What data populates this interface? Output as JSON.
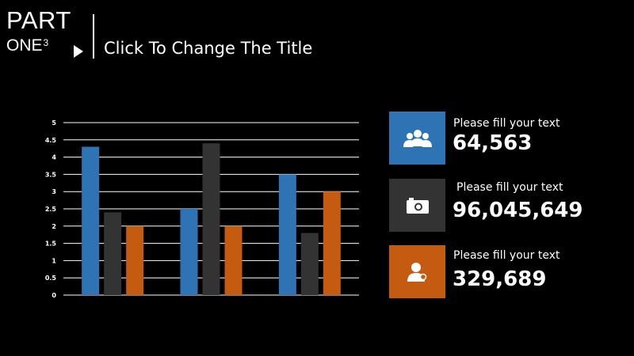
{
  "header": {
    "part_label": "PART",
    "one_label": "ONE",
    "one_superscript": "3",
    "title": "Click To Change The Title"
  },
  "chart_data": {
    "type": "bar",
    "categories": [
      "",
      "",
      ""
    ],
    "series": [
      {
        "values": [
          4.3,
          2.5,
          3.5
        ],
        "color": "#2e74b5"
      },
      {
        "values": [
          2.4,
          4.4,
          1.8
        ],
        "color": "#333333"
      },
      {
        "values": [
          2.0,
          2.0,
          3.0
        ],
        "color": "#c55a11"
      }
    ],
    "ylim": [
      0,
      5
    ],
    "yticks": [
      "0",
      "0.5",
      "1",
      "1.5",
      "2",
      "2.5",
      "3",
      "3.5",
      "4",
      "4.5",
      "5"
    ],
    "grid": true,
    "legend": "none",
    "xlabel": "",
    "ylabel": ""
  },
  "stats": [
    {
      "label": "Please fill your text",
      "value": "64,563",
      "icon": "people-icon",
      "color": "#2e74b5"
    },
    {
      "label": "Please fill your text",
      "value": "96,045,649",
      "icon": "camera-icon",
      "color": "#333333"
    },
    {
      "label": "Please fill your text",
      "value": "329,689",
      "icon": "user-icon",
      "color": "#c55a11"
    }
  ]
}
